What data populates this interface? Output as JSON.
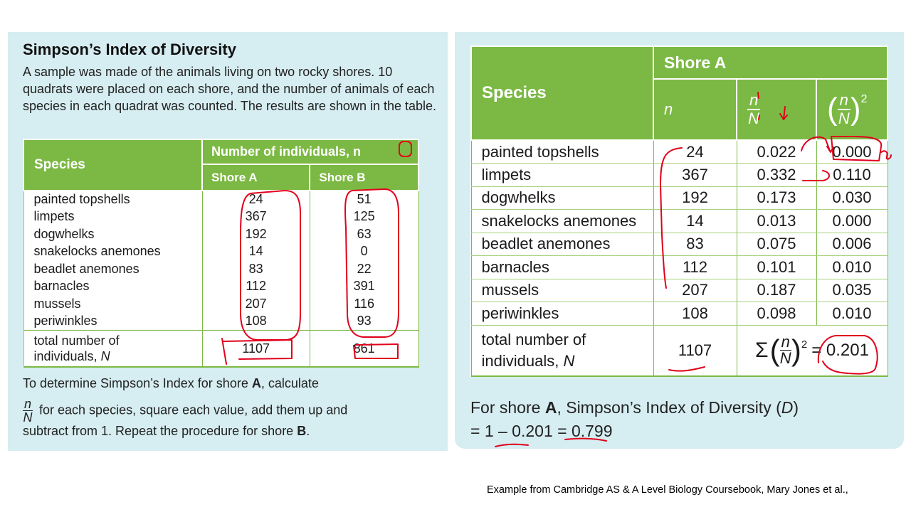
{
  "left": {
    "title": "Simpson’s Index of Diversity",
    "intro": "A sample was made of the animals living on two rocky shores. 10 quadrats were placed on each shore, and the number of animals of each species in each quadrat was counted. The results are shown in the table.",
    "table": {
      "species_header": "Species",
      "group_header": "Number of individuals, n",
      "shore_a": "Shore A",
      "shore_b": "Shore B",
      "rows": [
        {
          "species": "painted topshells",
          "a": "24",
          "b": "51"
        },
        {
          "species": "limpets",
          "a": "367",
          "b": "125"
        },
        {
          "species": "dogwhelks",
          "a": "192",
          "b": "63"
        },
        {
          "species": "snakelocks anemones",
          "a": "14",
          "b": "0"
        },
        {
          "species": "beadlet anemones",
          "a": "83",
          "b": "22"
        },
        {
          "species": "barnacles",
          "a": "112",
          "b": "391"
        },
        {
          "species": "mussels",
          "a": "207",
          "b": "116"
        },
        {
          "species": "periwinkles",
          "a": "108",
          "b": "93"
        }
      ],
      "total_label_1": "total number of",
      "total_label_2": "individuals,",
      "total_label_var": "N",
      "total_a": "1107",
      "total_b": "861"
    },
    "bottom_line1_pre": "To determine Simpson’s Index for shore ",
    "bottom_line1_bold": "A",
    "bottom_line1_post": ", calculate",
    "frac_num": "n",
    "frac_den": "N",
    "bottom_line2": " for each species, square each value, add them up and",
    "bottom_line3_pre": "subtract from 1. Repeat the procedure for shore ",
    "bottom_line3_bold": "B",
    "bottom_line3_post": "."
  },
  "right": {
    "table": {
      "species_header": "Species",
      "shore_header": "Shore A",
      "col_n": "n",
      "col_frac_num": "n",
      "col_frac_den": "N",
      "col_sq_exp": "2",
      "rows": [
        {
          "species": "painted topshells",
          "n": "24",
          "ratio": "0.022",
          "sq": "0.000"
        },
        {
          "species": "limpets",
          "n": "367",
          "ratio": "0.332",
          "sq": "0.110"
        },
        {
          "species": "dogwhelks",
          "n": "192",
          "ratio": "0.173",
          "sq": "0.030"
        },
        {
          "species": "snakelocks anemones",
          "n": "14",
          "ratio": "0.013",
          "sq": "0.000"
        },
        {
          "species": "beadlet anemones",
          "n": "83",
          "ratio": "0.075",
          "sq": "0.006"
        },
        {
          "species": "barnacles",
          "n": "112",
          "ratio": "0.101",
          "sq": "0.010"
        },
        {
          "species": "mussels",
          "n": "207",
          "ratio": "0.187",
          "sq": "0.035"
        },
        {
          "species": "periwinkles",
          "n": "108",
          "ratio": "0.098",
          "sq": "0.010"
        }
      ],
      "total_label_1": "total number of",
      "total_label_2": "individuals,",
      "total_label_var": "N",
      "total_n": "1107",
      "sum_sigma": "Σ",
      "sum_num": "n",
      "sum_den": "N",
      "sum_exp": "2",
      "sum_value": "= 0.201"
    },
    "result_line1_pre": "For shore ",
    "result_line1_bold": "A",
    "result_line1_mid": ", Simpson’s Index of Diversity (",
    "result_line1_var": "D",
    "result_line1_post": ")",
    "result_line2": "= 1 – 0.201 = 0.799"
  },
  "caption": "Example from Cambridge AS & A Level Biology Coursebook, Mary Jones et al.,",
  "colors": {
    "accent_green": "#7cb944",
    "panel_bg": "#d6edf1",
    "annotation_red": "#e0001b"
  }
}
